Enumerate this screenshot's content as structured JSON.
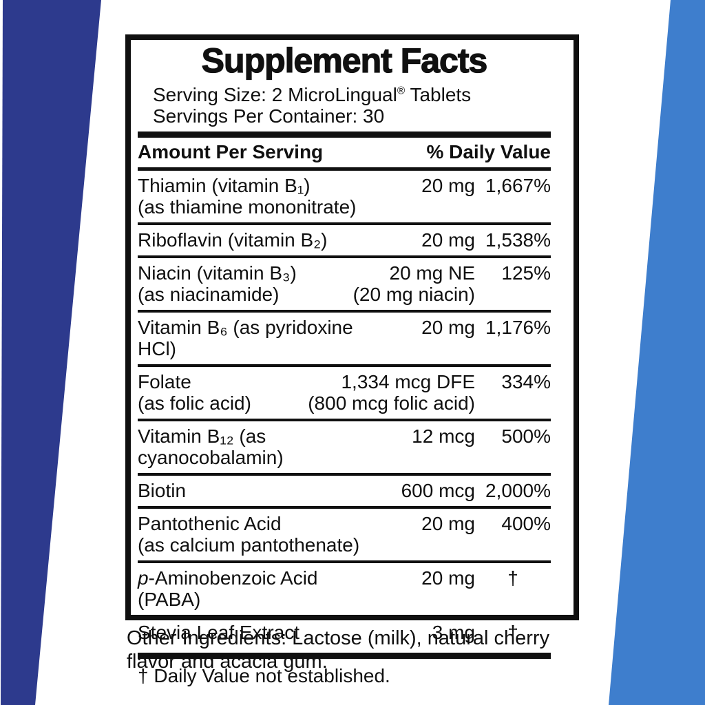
{
  "colors": {
    "left_band": "#2d3a8d",
    "right_band": "#3e7ecd",
    "ink": "#101010",
    "paper": "#ffffff"
  },
  "label": {
    "title": "Supplement Facts",
    "serving_size_pre": "Serving Size: 2 MicroLingual",
    "serving_size_reg": "®",
    "serving_size_post": " Tablets",
    "servings_per_container": "Servings Per Container: 30",
    "header": {
      "left": "Amount Per Serving",
      "right": "% Daily Value"
    },
    "rows": [
      {
        "name": "Thiamin (vitamin B₁)",
        "name2": "(as thiamine mononitrate)",
        "amount": "20 mg",
        "dv": "1,667%"
      },
      {
        "name": "Riboflavin (vitamin B₂)",
        "amount": "20 mg",
        "dv": "1,538%"
      },
      {
        "name": "Niacin (vitamin B₃)",
        "name2": "(as niacinamide)",
        "amount": "20 mg NE",
        "amount2": "(20 mg niacin)",
        "dv": "125%"
      },
      {
        "name": "Vitamin B₆ (as pyridoxine HCl)",
        "amount": "20 mg",
        "dv": "1,176%"
      },
      {
        "name": "Folate",
        "name2": "(as folic acid)",
        "amount": "1,334 mcg DFE",
        "amount2": "(800 mcg folic acid)",
        "dv": "334%"
      },
      {
        "name": "Vitamin B₁₂ (as cyanocobalamin)",
        "amount": "12 mcg",
        "dv": "500%"
      },
      {
        "name": "Biotin",
        "amount": "600 mcg",
        "dv": "2,000%"
      },
      {
        "name": "Pantothenic Acid",
        "name2": "(as calcium pantothenate)",
        "amount": "20 mg",
        "dv": "400%"
      },
      {
        "name_italic": "p",
        "name": "-Aminobenzoic Acid (PABA)",
        "amount": "20 mg",
        "dv": "†"
      },
      {
        "name": "Stevia Leaf Extract",
        "amount": "3 mg",
        "dv": "†"
      }
    ],
    "footnote": "† Daily Value not established."
  },
  "other_ingredients": {
    "line1": "Other Ingredients: Lactose (milk), natural cherry",
    "line2": "flavor and acacia gum."
  }
}
